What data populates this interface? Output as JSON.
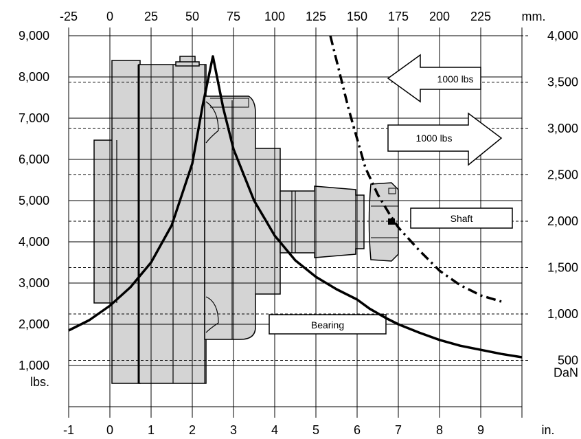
{
  "chart_data": {
    "type": "line",
    "x_bottom": {
      "unit": "in.",
      "range": [
        -1,
        10
      ],
      "ticks": [
        "-1",
        "0",
        "1",
        "2",
        "3",
        "4",
        "5",
        "6",
        "7",
        "8",
        "9"
      ]
    },
    "x_top": {
      "unit": "mm.",
      "range": [
        -25,
        250
      ],
      "ticks": [
        "-25",
        "0",
        "25",
        "50",
        "75",
        "100",
        "125",
        "150",
        "175",
        "200",
        "225"
      ]
    },
    "y_left": {
      "unit": "lbs.",
      "range": [
        0,
        9000
      ],
      "ticks": [
        "1,000",
        "2,000",
        "3,000",
        "4,000",
        "5,000",
        "6,000",
        "7,000",
        "8,000",
        "9,000"
      ]
    },
    "y_right": {
      "unit": "DaN",
      "range": [
        0,
        4000
      ],
      "ticks": [
        "500",
        "1,000",
        "1,500",
        "2,000",
        "2,500",
        "3,000",
        "3,500",
        "4,000"
      ]
    },
    "grid": true,
    "series": [
      {
        "name": "Bearing",
        "style": "solid",
        "x": [
          -1,
          -0.5,
          0,
          0.5,
          1,
          1.5,
          2,
          2.25,
          2.5,
          2.75,
          3,
          3.5,
          4,
          4.5,
          5,
          5.5,
          6,
          6.3,
          6.7,
          7,
          7.5,
          8,
          8.5,
          9,
          9.5,
          10
        ],
        "y": [
          1850,
          2100,
          2450,
          2900,
          3500,
          4400,
          5900,
          7300,
          8500,
          7250,
          6250,
          5000,
          4150,
          3550,
          3150,
          2850,
          2600,
          2380,
          2150,
          2000,
          1800,
          1620,
          1480,
          1380,
          1280,
          1200
        ]
      },
      {
        "name": "Shaft",
        "style": "dash-dot",
        "x": [
          5.35,
          5.6,
          5.8,
          6,
          6.2,
          6.5,
          6.8,
          7,
          7.5,
          8,
          8.5,
          9,
          9.5
        ],
        "y": [
          9000,
          8000,
          7200,
          6500,
          5800,
          5150,
          4650,
          4350,
          3800,
          3300,
          2950,
          2700,
          2550
        ]
      }
    ],
    "annotations": [
      {
        "text": "1000 lbs"
      },
      {
        "text": "1000 lbs"
      },
      {
        "text": "Shaft"
      },
      {
        "text": "Bearing"
      }
    ]
  }
}
